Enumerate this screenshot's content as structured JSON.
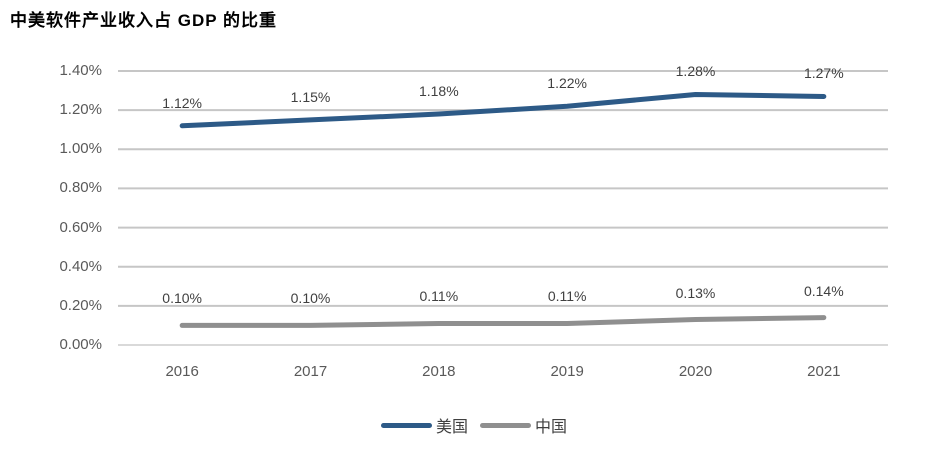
{
  "title": "中美软件产业收入占 GDP 的比重",
  "chart_data": {
    "type": "line",
    "categories": [
      "2016",
      "2017",
      "2018",
      "2019",
      "2020",
      "2021"
    ],
    "series": [
      {
        "name": "美国",
        "color": "#2d5a87",
        "values": [
          1.12,
          1.15,
          1.18,
          1.22,
          1.28,
          1.27
        ],
        "labels": [
          "1.12%",
          "1.15%",
          "1.18%",
          "1.22%",
          "1.28%",
          "1.27%"
        ]
      },
      {
        "name": "中国",
        "color": "#8f8f8f",
        "values": [
          0.1,
          0.1,
          0.11,
          0.11,
          0.13,
          0.14
        ],
        "labels": [
          "0.10%",
          "0.10%",
          "0.11%",
          "0.11%",
          "0.13%",
          "0.14%"
        ]
      }
    ],
    "yticks": [
      "0.00%",
      "0.20%",
      "0.40%",
      "0.60%",
      "0.80%",
      "1.00%",
      "1.20%",
      "1.40%"
    ],
    "ylim": [
      0,
      1.4
    ],
    "grid": true,
    "gridline_color": "#c6c6c6",
    "baseline_color": "#d9d9d9",
    "legend_position": "bottom"
  }
}
